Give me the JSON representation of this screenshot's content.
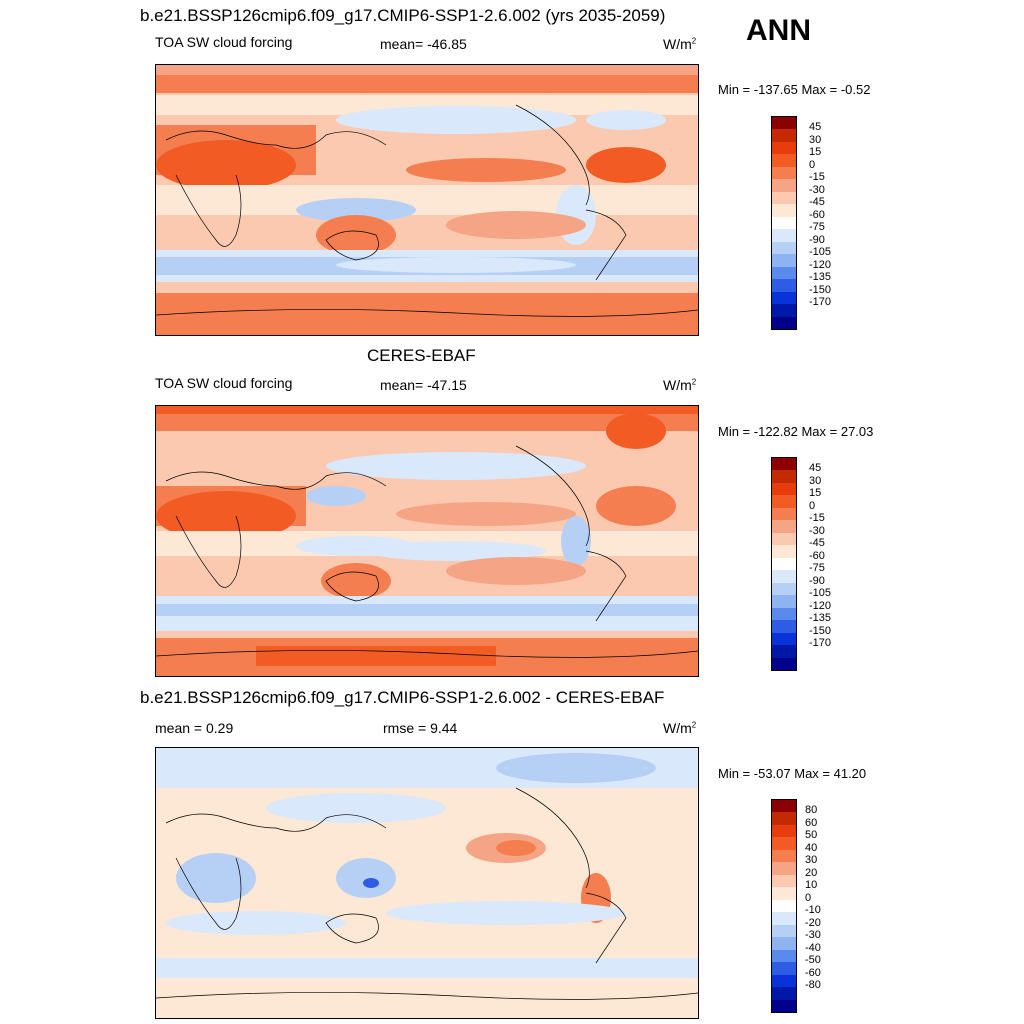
{
  "season": "ANN",
  "panels": [
    {
      "title": "b.e21.BSSP126cmip6.f09_g17.CMIP6-SSP1-2.6.002 (yrs 2035-2059)",
      "left_label": "TOA SW cloud forcing",
      "center_label": "mean= -46.85",
      "units": "W/m",
      "units_sup": "2",
      "minmax": "Min = -137.65 Max =  -0.52",
      "colorbar": {
        "labels": [
          "45",
          "30",
          "15",
          "0",
          "-15",
          "-30",
          "-45",
          "-60",
          "-75",
          "-90",
          "-105",
          "-120",
          "-135",
          "-150",
          "-170"
        ],
        "colors": [
          "#8b0000",
          "#c42a00",
          "#e83c0d",
          "#f25c24",
          "#f47e50",
          "#f5a585",
          "#fac9b0",
          "#fde8d6",
          "#ffffff",
          "#d9e8fa",
          "#b6cff5",
          "#8db3f0",
          "#5a8bec",
          "#2f5ce5",
          "#0a32db",
          "#0018a8",
          "#00008b"
        ]
      }
    },
    {
      "title": "CERES-EBAF",
      "left_label": "TOA SW cloud forcing",
      "center_label": "mean= -47.15",
      "units": "W/m",
      "units_sup": "2",
      "minmax": "Min = -122.82 Max =  27.03",
      "colorbar": {
        "labels": [
          "45",
          "30",
          "15",
          "0",
          "-15",
          "-30",
          "-45",
          "-60",
          "-75",
          "-90",
          "-105",
          "-120",
          "-135",
          "-150",
          "-170"
        ],
        "colors": [
          "#8b0000",
          "#c42a00",
          "#e83c0d",
          "#f25c24",
          "#f47e50",
          "#f5a585",
          "#fac9b0",
          "#fde8d6",
          "#ffffff",
          "#d9e8fa",
          "#b6cff5",
          "#8db3f0",
          "#5a8bec",
          "#2f5ce5",
          "#0a32db",
          "#0018a8",
          "#00008b"
        ]
      }
    },
    {
      "title": "b.e21.BSSP126cmip6.f09_g17.CMIP6-SSP1-2.6.002 - CERES-EBAF",
      "left_label": "mean =   0.29",
      "center_label": "rmse =   9.44",
      "units": "W/m",
      "units_sup": "2",
      "minmax": "Min = -53.07 Max =  41.20",
      "colorbar": {
        "labels": [
          "80",
          "60",
          "50",
          "40",
          "30",
          "20",
          "10",
          "0",
          "-10",
          "-20",
          "-30",
          "-40",
          "-50",
          "-60",
          "-80"
        ],
        "colors": [
          "#8b0000",
          "#c42a00",
          "#e83c0d",
          "#f25c24",
          "#f47e50",
          "#f5a585",
          "#fac9b0",
          "#fde8d6",
          "#ffffff",
          "#d9e8fa",
          "#b6cff5",
          "#8db3f0",
          "#5a8bec",
          "#2f5ce5",
          "#0a32db",
          "#0018a8",
          "#00008b"
        ]
      }
    }
  ]
}
